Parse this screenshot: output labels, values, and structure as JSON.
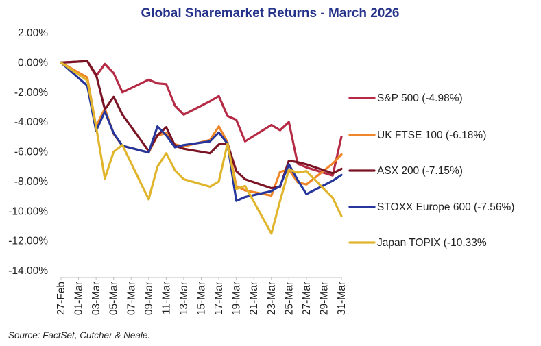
{
  "chart_data": {
    "type": "line",
    "title": "Global Sharemarket Returns - March 2026",
    "xlabel": "",
    "ylabel": "",
    "ylim": [
      -14,
      2
    ],
    "yticks": [
      2,
      0,
      -2,
      -4,
      -6,
      -8,
      -10,
      -12,
      -14
    ],
    "ytick_labels": [
      "2.00%",
      "0.00%",
      "-2.00%",
      "-4.00%",
      "-6.00%",
      "-8.00%",
      "-10.00%",
      "-12.00%",
      "-14.00%"
    ],
    "x": [
      "27-Feb",
      "02-Mar",
      "03-Mar",
      "04-Mar",
      "05-Mar",
      "06-Mar",
      "09-Mar",
      "10-Mar",
      "11-Mar",
      "12-Mar",
      "13-Mar",
      "16-Mar",
      "17-Mar",
      "18-Mar",
      "19-Mar",
      "20-Mar",
      "23-Mar",
      "24-Mar",
      "25-Mar",
      "26-Mar",
      "27-Mar",
      "30-Mar",
      "31-Mar"
    ],
    "x_index": [
      0,
      3,
      4,
      5,
      6,
      7,
      10,
      11,
      12,
      13,
      14,
      17,
      18,
      19,
      20,
      21,
      24,
      25,
      26,
      27,
      28,
      31,
      32
    ],
    "xtick_labels": [
      "27-Feb",
      "01-Mar",
      "03-Mar",
      "05-Mar",
      "07-Mar",
      "09-Mar",
      "11-Mar",
      "13-Mar",
      "15-Mar",
      "17-Mar",
      "19-Mar",
      "21-Mar",
      "23-Mar",
      "25-Mar",
      "27-Mar",
      "29-Mar",
      "31-Mar"
    ],
    "legend_position": "right",
    "series": [
      {
        "name": "S&P 500 (-4.98%)",
        "color": "#b52a45",
        "values": [
          0,
          0.1,
          -0.9,
          -0.1,
          -0.7,
          -2.0,
          -1.15,
          -1.4,
          -1.45,
          -2.9,
          -3.5,
          -2.6,
          -2.25,
          -3.6,
          -3.85,
          -5.3,
          -4.2,
          -4.55,
          -4.0,
          -6.8,
          -7.05,
          -7.6,
          -4.98
        ]
      },
      {
        "name": "UK FTSE 100 (-6.18%)",
        "color": "#f0862a",
        "values": [
          0,
          -1.0,
          -4.3,
          -3.1,
          -4.8,
          -5.6,
          -6.05,
          -4.9,
          -4.75,
          -5.5,
          -5.65,
          -5.2,
          -4.3,
          -5.35,
          -8.3,
          -8.6,
          -8.95,
          -7.35,
          -7.2,
          -8.05,
          -8.2,
          -6.8,
          -6.18
        ]
      },
      {
        "name": "ASX 200 (-7.15%)",
        "color": "#7a1424",
        "values": [
          0,
          0.1,
          -0.8,
          -3.15,
          -2.3,
          -3.5,
          -5.95,
          -4.9,
          -4.35,
          -5.6,
          -5.8,
          -6.1,
          -5.5,
          -5.45,
          -7.3,
          -7.85,
          -8.45,
          -8.35,
          -6.6,
          -6.7,
          -6.85,
          -7.45,
          -7.15
        ]
      },
      {
        "name": "STOXX Europe 600 (-7.56%)",
        "color": "#26369c",
        "values": [
          0,
          -1.55,
          -4.6,
          -3.3,
          -4.75,
          -5.6,
          -6.05,
          -4.3,
          -4.9,
          -5.7,
          -5.55,
          -5.3,
          -4.7,
          -5.45,
          -9.3,
          -9.05,
          -8.65,
          -8.3,
          -6.85,
          -7.9,
          -8.85,
          -7.95,
          -7.56
        ]
      },
      {
        "name": "Japan TOPIX (-10.33%",
        "color": "#e0b52c",
        "values": [
          0,
          -1.2,
          -4.3,
          -7.8,
          -6.0,
          -5.55,
          -9.2,
          -7.0,
          -6.1,
          -7.25,
          -7.85,
          -8.35,
          -8.0,
          -5.45,
          -8.5,
          -8.3,
          -11.5,
          -9.3,
          -7.2,
          -7.4,
          -7.3,
          -9.1,
          -10.33
        ]
      }
    ]
  },
  "source_note": "Source: FactSet, Cutcher & Neale."
}
